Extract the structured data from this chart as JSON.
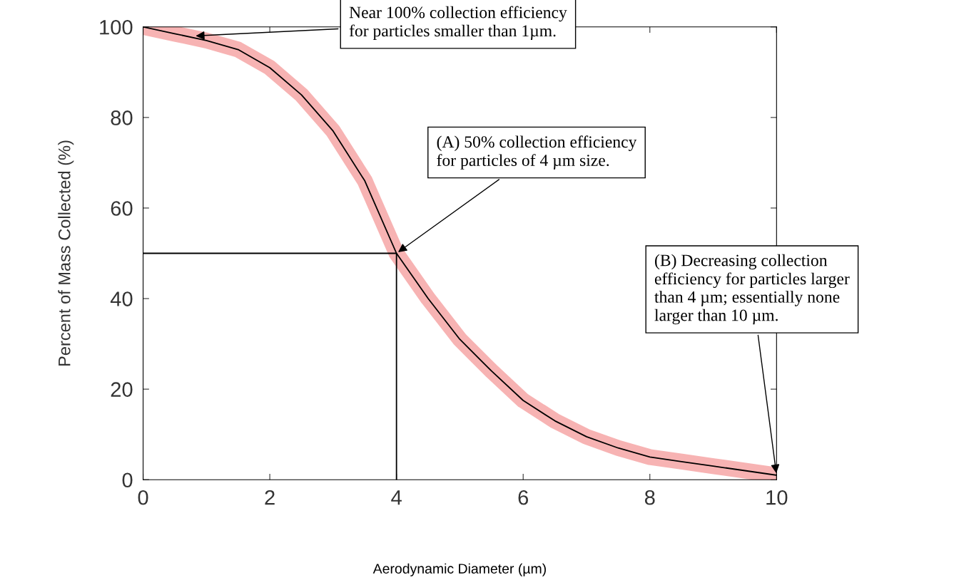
{
  "chart_data": {
    "type": "line",
    "xlabel": "Aerodynamic Diameter (µm)",
    "ylabel": "Percent of Mass Collected (%)",
    "xlim": [
      0,
      10
    ],
    "ylim": [
      0,
      100
    ],
    "xticks": [
      0,
      2,
      4,
      6,
      8,
      10
    ],
    "yticks": [
      0,
      20,
      40,
      60,
      80,
      100
    ],
    "grid": false,
    "marker": "none",
    "series": [
      {
        "color": "#000000",
        "x": [
          0,
          0.5,
          1,
          1.5,
          2,
          2.5,
          3,
          3.5,
          4,
          4.5,
          5,
          5.5,
          6,
          6.5,
          7,
          7.5,
          8,
          8.5,
          9,
          9.5,
          10
        ],
        "values": [
          100,
          98.5,
          97,
          95,
          91,
          85,
          77,
          66,
          50,
          40,
          31,
          24,
          17.5,
          13,
          9.5,
          7,
          5,
          4,
          3,
          2,
          1
        ]
      },
      {
        "color": "#000000",
        "x": [
          0,
          4,
          4
        ],
        "values": [
          50,
          50,
          0
        ]
      }
    ],
    "annotations": [
      {
        "text": "Near 100% collection efficiency\nfor particles smaller than 1µm.",
        "x": 0.8,
        "y": 98
      },
      {
        "text": "(A) 50% collection efficiency\nfor particles of 4 µm size.",
        "x": 4,
        "y": 50
      },
      {
        "text": "(B) Decreasing collection\nefficiency for particles larger\nthan 4 µm; essentially none\nlarger than 10 µm.",
        "x": 10,
        "y": 1
      }
    ]
  }
}
